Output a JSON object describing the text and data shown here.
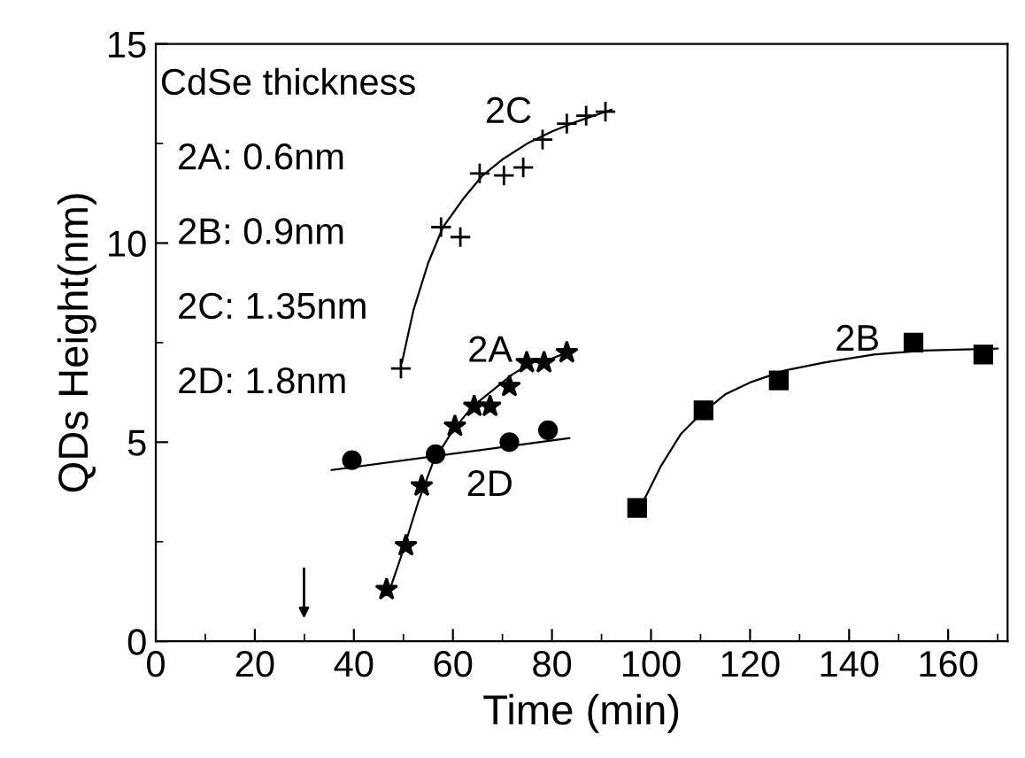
{
  "chart_data": {
    "type": "scatter",
    "xlabel": "Time (min)",
    "ylabel": "QDs Height(nm)",
    "xlim": [
      0,
      172
    ],
    "ylim": [
      0,
      15
    ],
    "xticks": [
      0,
      20,
      40,
      60,
      80,
      100,
      120,
      140,
      160
    ],
    "yticks": [
      0,
      5,
      10,
      15
    ],
    "grid": false,
    "legend": false,
    "annotations": [
      "CdSe thickness",
      "2A: 0.6nm",
      "2B: 0.9nm",
      "2C: 1.35nm",
      "2D: 1.8nm"
    ],
    "series": [
      {
        "type": "scatter",
        "name": "2C",
        "marker": "cross",
        "color": "#000000",
        "x": [
          49.5,
          57.6,
          61.5,
          65.4,
          70.3,
          74.2,
          78.1,
          83.0,
          86.9,
          90.8
        ],
        "values": [
          6.85,
          10.4,
          10.15,
          11.75,
          11.7,
          11.9,
          12.6,
          13.0,
          13.2,
          13.3
        ]
      },
      {
        "type": "scatter",
        "name": "2A",
        "marker": "star",
        "color": "#000000",
        "x": [
          46.6,
          50.5,
          53.7,
          60.4,
          64.3,
          67.5,
          71.4,
          74.9,
          78.4,
          83.0
        ],
        "values": [
          1.3,
          2.4,
          3.9,
          5.4,
          5.9,
          5.9,
          6.4,
          7.0,
          7.0,
          7.25
        ]
      },
      {
        "type": "scatter",
        "name": "2D",
        "marker": "circle",
        "color": "#000000",
        "x": [
          39.6,
          56.5,
          71.4,
          79.2
        ],
        "values": [
          4.55,
          4.7,
          5.0,
          5.3
        ]
      },
      {
        "type": "scatter",
        "name": "2B",
        "marker": "square",
        "color": "#000000",
        "x": [
          97.2,
          110.6,
          125.8,
          153.0,
          167.1
        ],
        "values": [
          3.35,
          5.8,
          6.55,
          7.5,
          7.2
        ]
      },
      {
        "type": "line",
        "marker": "none",
        "color": "#000000",
        "x": [
          49.7,
          52,
          55,
          58,
          62,
          66,
          70,
          75,
          80,
          85,
          92
        ],
        "values": [
          7.0,
          8.3,
          9.5,
          10.4,
          11.1,
          11.7,
          12.1,
          12.5,
          12.8,
          13.05,
          13.35
        ]
      },
      {
        "type": "line",
        "marker": "none",
        "color": "#000000",
        "x": [
          47,
          50,
          53,
          56,
          60,
          64,
          68,
          72,
          76,
          80,
          84
        ],
        "values": [
          1.2,
          2.3,
          3.5,
          4.5,
          5.3,
          5.9,
          6.3,
          6.7,
          7.0,
          7.1,
          7.3
        ]
      },
      {
        "type": "line",
        "marker": "none",
        "color": "#000000",
        "x": [
          35.5,
          83.5
        ],
        "values": [
          4.3,
          5.1
        ]
      },
      {
        "type": "line",
        "marker": "none",
        "color": "#000000",
        "x": [
          98,
          102,
          106,
          110,
          115,
          120,
          127,
          135,
          145,
          155,
          170
        ],
        "values": [
          3.4,
          4.4,
          5.2,
          5.7,
          6.2,
          6.5,
          6.8,
          7.0,
          7.2,
          7.3,
          7.35
        ]
      }
    ]
  }
}
